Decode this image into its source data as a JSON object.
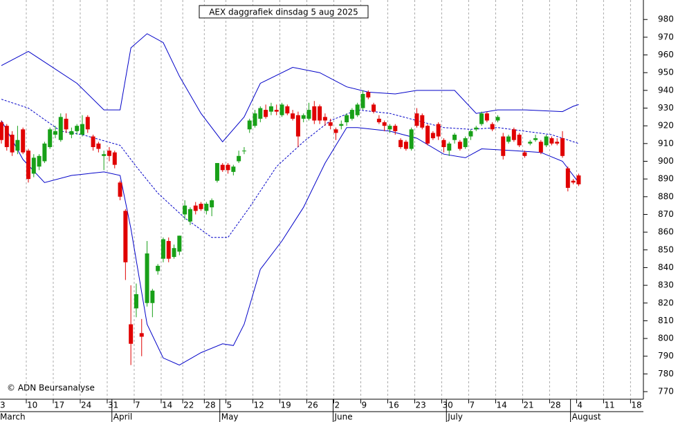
{
  "chart_data": {
    "type": "candlestick",
    "title": "AEX daggrafiek dinsdag 5 aug 2025",
    "annotation": "© ADN Beursanalyse",
    "up_color": "#18a018",
    "down_color": "#e00000",
    "open": [
      922,
      920,
      915,
      906,
      918,
      906,
      893,
      897,
      900,
      908,
      915,
      912,
      924,
      915,
      917,
      915,
      925,
      914,
      910,
      903,
      906,
      905,
      888,
      872,
      808,
      817,
      803,
      820,
      820,
      838,
      845,
      855,
      846,
      849,
      870,
      866,
      875,
      876,
      872,
      874,
      889,
      898,
      898,
      894,
      900,
      906,
      918,
      920,
      924,
      929,
      928,
      929,
      926,
      931,
      927,
      926,
      924,
      924,
      931,
      931,
      925,
      922,
      918,
      920,
      922,
      924,
      926,
      930,
      939,
      932,
      924,
      922,
      918,
      920,
      912,
      911,
      907,
      927,
      926,
      920,
      916,
      921,
      912,
      906,
      912,
      911,
      908,
      914,
      918,
      921,
      927,
      921,
      923,
      914,
      911,
      918,
      915,
      905,
      910,
      912,
      911,
      909,
      913,
      911,
      913,
      896,
      889,
      892
    ],
    "high": [
      923,
      921,
      917,
      920,
      919,
      907,
      904,
      904,
      911,
      919,
      920,
      927,
      927,
      919,
      921,
      926,
      926,
      915,
      911,
      906,
      908,
      906,
      889,
      873,
      830,
      831,
      811,
      855,
      828,
      842,
      857,
      857,
      853,
      858,
      878,
      874,
      877,
      877,
      877,
      879,
      899,
      899,
      899,
      898,
      906,
      908,
      924,
      929,
      931,
      932,
      933,
      932,
      933,
      932,
      929,
      928,
      927,
      933,
      934,
      932,
      927,
      924,
      919,
      923,
      927,
      930,
      933,
      940,
      940,
      933,
      926,
      923,
      921,
      921,
      913,
      912,
      919,
      930,
      927,
      921,
      917,
      922,
      913,
      911,
      916,
      912,
      914,
      918,
      920,
      928,
      928,
      922,
      926,
      916,
      915,
      919,
      916,
      906,
      912,
      915,
      912,
      915,
      914,
      913,
      917,
      897,
      890,
      893
    ],
    "low": [
      910,
      906,
      903,
      904,
      904,
      888,
      891,
      895,
      899,
      907,
      913,
      911,
      916,
      913,
      915,
      914,
      916,
      906,
      905,
      895,
      900,
      896,
      878,
      833,
      785,
      812,
      790,
      818,
      812,
      836,
      843,
      843,
      845,
      847,
      867,
      864,
      870,
      872,
      870,
      869,
      888,
      894,
      893,
      892,
      899,
      904,
      916,
      919,
      922,
      924,
      926,
      926,
      925,
      926,
      923,
      908,
      922,
      923,
      921,
      921,
      920,
      918,
      912,
      918,
      920,
      923,
      925,
      929,
      935,
      927,
      921,
      917,
      916,
      915,
      907,
      906,
      906,
      919,
      918,
      909,
      912,
      912,
      905,
      903,
      910,
      906,
      907,
      912,
      917,
      920,
      922,
      917,
      922,
      901,
      910,
      911,
      908,
      902,
      909,
      911,
      904,
      908,
      909,
      909,
      902,
      883,
      887,
      886
    ],
    "close": [
      912,
      908,
      905,
      912,
      905,
      890,
      902,
      903,
      910,
      918,
      917,
      925,
      918,
      917,
      920,
      921,
      918,
      908,
      907,
      904,
      903,
      898,
      880,
      843,
      797,
      825,
      801,
      848,
      827,
      841,
      856,
      845,
      851,
      858,
      875,
      873,
      872,
      873,
      876,
      878,
      899,
      895,
      895,
      897,
      903,
      906,
      923,
      927,
      930,
      925,
      931,
      928,
      932,
      927,
      924,
      914,
      926,
      929,
      923,
      923,
      923,
      920,
      916,
      921,
      926,
      929,
      932,
      938,
      936,
      928,
      922,
      920,
      920,
      917,
      908,
      907,
      918,
      920,
      919,
      910,
      913,
      914,
      908,
      910,
      915,
      907,
      913,
      917,
      919,
      927,
      923,
      918,
      925,
      903,
      914,
      912,
      909,
      903,
      911,
      913,
      905,
      914,
      910,
      910,
      903,
      885,
      888,
      887
    ],
    "series": [
      {
        "color": "#0000c8",
        "dashed": false,
        "x": [
          0,
          5,
          7,
          14,
          19,
          22,
          24,
          27,
          30,
          33,
          37,
          41,
          45,
          48,
          54,
          59,
          64,
          68,
          73,
          77,
          84,
          88,
          92,
          97,
          104,
          106,
          107
        ],
        "values": [
          954,
          962,
          958,
          944,
          929,
          929,
          964,
          972,
          967,
          948,
          927,
          911,
          925,
          944,
          953,
          950,
          942,
          939,
          938,
          940,
          940,
          927,
          929,
          929,
          928,
          931,
          932
        ]
      },
      {
        "color": "#0000c8",
        "dashed": true,
        "x": [
          0,
          5,
          11,
          15,
          22,
          25,
          29,
          34,
          39,
          42,
          46,
          51,
          56,
          61,
          66,
          72,
          77,
          82,
          87,
          92,
          97,
          102,
          107
        ],
        "values": [
          935,
          930,
          917,
          915,
          909,
          897,
          882,
          868,
          857,
          857,
          874,
          897,
          911,
          923,
          929,
          927,
          923,
          919,
          918,
          919,
          917,
          915,
          910
        ]
      },
      {
        "color": "#0000c8",
        "dashed": false,
        "x": [
          0,
          4,
          8,
          13,
          19,
          22,
          24,
          27,
          30,
          33,
          37,
          41,
          43,
          45,
          48,
          52,
          56,
          60,
          64,
          66,
          72,
          77,
          82,
          86,
          89,
          95,
          100,
          104,
          107
        ],
        "values": [
          923,
          901,
          888,
          892,
          894,
          892,
          862,
          808,
          789,
          785,
          792,
          797,
          796,
          808,
          839,
          855,
          874,
          899,
          919,
          919,
          917,
          913,
          904,
          902,
          907,
          906,
          905,
          900,
          888
        ]
      }
    ],
    "xlim": [
      0,
      119
    ],
    "xticks": [
      {
        "value": 0,
        "label": "3"
      },
      {
        "value": 5,
        "label": "10"
      },
      {
        "value": 10,
        "label": "17"
      },
      {
        "value": 15,
        "label": "24"
      },
      {
        "value": 20,
        "label": "31"
      },
      {
        "value": 25,
        "label": "7"
      },
      {
        "value": 30,
        "label": "14"
      },
      {
        "value": 34,
        "label": "22"
      },
      {
        "value": 38,
        "label": "28"
      },
      {
        "value": 42,
        "label": "5"
      },
      {
        "value": 47,
        "label": "12"
      },
      {
        "value": 52,
        "label": "19"
      },
      {
        "value": 57,
        "label": "26"
      },
      {
        "value": 62,
        "label": "2"
      },
      {
        "value": 67,
        "label": "9"
      },
      {
        "value": 72,
        "label": "16"
      },
      {
        "value": 77,
        "label": "23"
      },
      {
        "value": 82,
        "label": "30"
      },
      {
        "value": 87,
        "label": "7"
      },
      {
        "value": 92,
        "label": "14"
      },
      {
        "value": 97,
        "label": "21"
      },
      {
        "value": 102,
        "label": "28"
      },
      {
        "value": 107,
        "label": "4"
      },
      {
        "value": 112,
        "label": "11"
      },
      {
        "value": 117,
        "label": "18"
      }
    ],
    "month_ticks": [
      {
        "value": 0,
        "label": "March"
      },
      {
        "value": 21,
        "label": "April"
      },
      {
        "value": 41,
        "label": "May"
      },
      {
        "value": 62,
        "label": "June"
      },
      {
        "value": 83,
        "label": "July"
      },
      {
        "value": 106,
        "label": "August"
      }
    ],
    "ylim": [
      763,
      991
    ],
    "yticks": [
      770,
      780,
      790,
      800,
      810,
      820,
      830,
      840,
      850,
      860,
      870,
      880,
      890,
      900,
      910,
      920,
      930,
      940,
      950,
      960,
      970,
      980
    ],
    "grid": true
  }
}
